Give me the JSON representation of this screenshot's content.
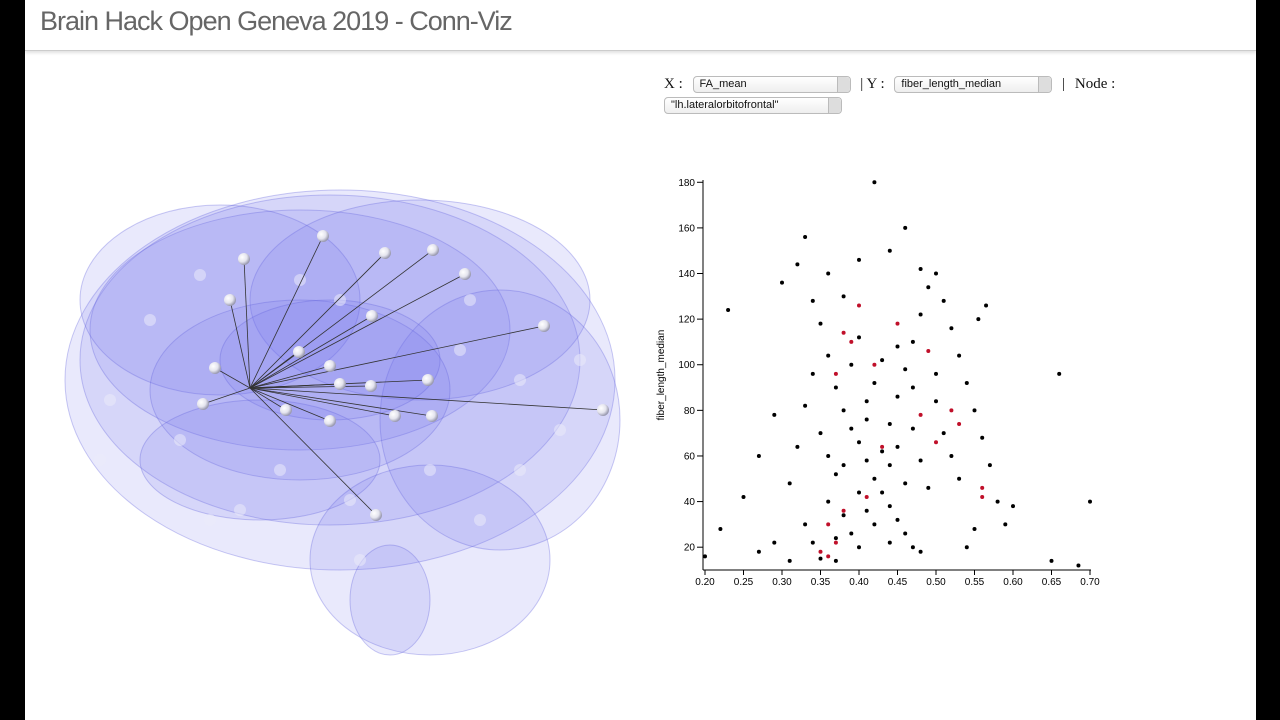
{
  "header": {
    "title": "Brain Hack Open Geneva 2019 - Conn-Viz"
  },
  "controls": {
    "x_label": "X :",
    "x_select": "FA_mean",
    "y_label": "| Y :",
    "y_select": "fiber_length_median",
    "separator": "|",
    "node_label": "Node :",
    "node_select": "\"lh.lateralorbitofrontal\""
  },
  "chart_data": {
    "type": "scatter",
    "y_label": "fiber_length_median",
    "xlim": [
      0.2,
      0.7
    ],
    "ylim": [
      10,
      181
    ],
    "xticks": [
      {
        "value": 0.2,
        "label": "0.20"
      },
      0.25,
      {
        "value": 0.3,
        "label": "0.30"
      },
      0.35,
      {
        "value": 0.4,
        "label": "0.40"
      },
      0.45,
      {
        "value": 0.5,
        "label": "0.50"
      },
      0.55,
      {
        "value": 0.6,
        "label": "0.60"
      },
      0.65,
      {
        "value": 0.7,
        "label": "0.70"
      }
    ],
    "yticks": [
      20,
      40,
      60,
      80,
      100,
      120,
      140,
      160,
      180
    ],
    "grid": false,
    "series": [
      {
        "color": "#000000",
        "x": [
          0.42,
          0.46,
          0.33,
          0.66,
          0.7,
          0.65,
          0.685,
          0.23,
          0.2,
          0.22,
          0.25,
          0.27,
          0.29,
          0.3,
          0.32,
          0.34,
          0.35,
          0.36,
          0.37,
          0.38,
          0.39,
          0.4,
          0.41,
          0.42,
          0.43,
          0.44,
          0.45,
          0.46,
          0.47,
          0.48,
          0.33,
          0.34,
          0.35,
          0.36,
          0.37,
          0.38,
          0.39,
          0.4,
          0.41,
          0.42,
          0.43,
          0.44,
          0.45,
          0.46,
          0.47,
          0.48,
          0.49,
          0.5,
          0.51,
          0.52,
          0.53,
          0.54,
          0.55,
          0.56,
          0.57,
          0.555,
          0.565,
          0.58,
          0.59,
          0.6,
          0.31,
          0.32,
          0.33,
          0.34,
          0.35,
          0.36,
          0.37,
          0.38,
          0.39,
          0.4,
          0.41,
          0.42,
          0.43,
          0.44,
          0.45,
          0.46,
          0.47,
          0.48,
          0.49,
          0.5,
          0.51,
          0.52,
          0.53,
          0.36,
          0.38,
          0.4,
          0.44,
          0.48,
          0.5,
          0.27,
          0.29,
          0.31,
          0.54,
          0.55,
          0.44,
          0.4,
          0.37,
          0.45,
          0.47,
          0.41
        ],
        "values": [
          180,
          160,
          156,
          96,
          40,
          14,
          12,
          124,
          16,
          28,
          42,
          60,
          78,
          136,
          144,
          128,
          118,
          104,
          90,
          80,
          72,
          66,
          58,
          50,
          44,
          38,
          32,
          26,
          20,
          18,
          30,
          22,
          15,
          40,
          52,
          34,
          26,
          44,
          36,
          30,
          62,
          74,
          86,
          98,
          110,
          122,
          134,
          140,
          128,
          116,
          104,
          92,
          80,
          68,
          56,
          120,
          126,
          40,
          30,
          38,
          48,
          64,
          82,
          96,
          70,
          60,
          24,
          56,
          100,
          112,
          84,
          92,
          102,
          56,
          64,
          48,
          72,
          58,
          46,
          84,
          70,
          60,
          50,
          140,
          130,
          146,
          150,
          142,
          96,
          18,
          22,
          14,
          20,
          28,
          22,
          20,
          14,
          108,
          90,
          76
        ]
      },
      {
        "color": "#c0102a",
        "x": [
          0.36,
          0.37,
          0.35,
          0.38,
          0.36,
          0.39,
          0.38,
          0.4,
          0.42,
          0.41,
          0.48,
          0.5,
          0.52,
          0.56,
          0.56,
          0.49,
          0.45,
          0.37,
          0.43,
          0.53
        ],
        "values": [
          30,
          22,
          18,
          36,
          16,
          110,
          114,
          126,
          100,
          42,
          78,
          66,
          80,
          46,
          42,
          106,
          118,
          96,
          64,
          74
        ]
      }
    ]
  }
}
